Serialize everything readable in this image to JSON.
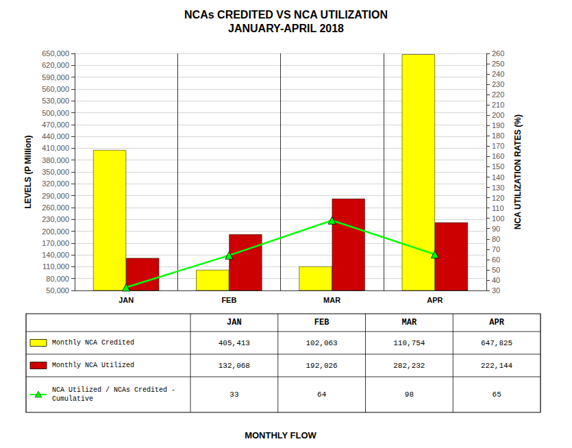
{
  "chart_data": {
    "type": "bar",
    "title": "NCAs CREDITED VS NCA UTILIZATION",
    "subtitle": "JANUARY-APRIL 2018",
    "categories": [
      "JAN",
      "FEB",
      "MAR",
      "APR"
    ],
    "series": [
      {
        "name": "Monthly NCA Credited",
        "color": "#FFFF00",
        "values": [
          405413,
          102063,
          110754,
          647825
        ],
        "value_labels": [
          "405,413",
          "102,063",
          "110,754",
          "647,825"
        ]
      },
      {
        "name": "Monthly NCA Utilized",
        "color": "#CC0000",
        "values": [
          132068,
          192026,
          282232,
          222144
        ],
        "value_labels": [
          "132,068",
          "192,026",
          "282,232",
          "222,144"
        ]
      },
      {
        "name": "NCA Utilized / NCAs Credited -\nCumulative",
        "type": "line",
        "axis": "y2",
        "color": "#00FF00",
        "marker": "triangle",
        "values": [
          33,
          64,
          98,
          65
        ]
      }
    ],
    "xlabel": "MONTHLY FLOW",
    "ylabel": "LEVELS (P Million)",
    "y2label": "NCA UTILIZATION RATES (%)",
    "ylim": [
      50000,
      650000
    ],
    "yticks": [
      {
        "value": 50000,
        "label": "50,000"
      },
      {
        "value": 80000,
        "label": "80,000"
      },
      {
        "value": 110000,
        "label": "110,000"
      },
      {
        "value": 140000,
        "label": "140,000"
      },
      {
        "value": 170000,
        "label": "170,000"
      },
      {
        "value": 200000,
        "label": "200,000"
      },
      {
        "value": 230000,
        "label": "230,000"
      },
      {
        "value": 260000,
        "label": "260,000"
      },
      {
        "value": 290000,
        "label": "290,000"
      },
      {
        "value": 320000,
        "label": "320,000"
      },
      {
        "value": 350000,
        "label": "350,000"
      },
      {
        "value": 380000,
        "label": "380,000"
      },
      {
        "value": 410000,
        "label": "410,000"
      },
      {
        "value": 440000,
        "label": "440,000"
      },
      {
        "value": 470000,
        "label": "470,000"
      },
      {
        "value": 500000,
        "label": "500,000"
      },
      {
        "value": 530000,
        "label": "530,000"
      },
      {
        "value": 560000,
        "label": "560,000"
      },
      {
        "value": 590000,
        "label": "590,000"
      },
      {
        "value": 620000,
        "label": "620,000"
      },
      {
        "value": 650000,
        "label": "650,000"
      }
    ],
    "y2lim": [
      30,
      260
    ],
    "y2ticks": [
      30,
      40,
      50,
      60,
      70,
      80,
      90,
      100,
      110,
      120,
      130,
      140,
      150,
      160,
      170,
      180,
      190,
      200,
      210,
      220,
      230,
      240,
      250,
      260
    ],
    "grid": true
  }
}
